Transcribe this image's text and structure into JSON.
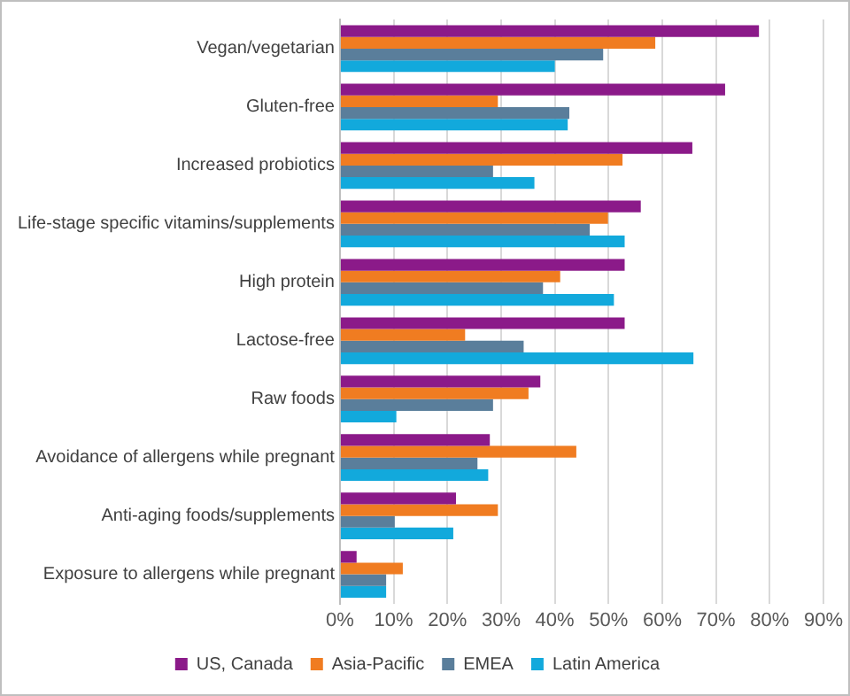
{
  "chart_data": {
    "type": "bar",
    "orientation": "horizontal",
    "categories": [
      "Vegan/vegetarian",
      "Gluten-free",
      "Increased probiotics",
      "Life-stage specific vitamins/supplements",
      "High protein",
      "Lactose-free",
      "Raw foods",
      "Avoidance of allergens while pregnant",
      "Anti-aging foods/supplements",
      "Exposure to allergens while pregnant"
    ],
    "series": [
      {
        "name": "US, Canada",
        "color": "#8b1a89",
        "values": [
          78,
          71.7,
          65.6,
          56,
          53,
          53,
          37.3,
          27.9,
          21.6,
          3.1
        ]
      },
      {
        "name": "Asia-Pacific",
        "color": "#f07c21",
        "values": [
          58.7,
          29.4,
          52.6,
          49.9,
          41,
          23.3,
          35.1,
          44,
          29.4,
          11.7
        ]
      },
      {
        "name": "EMEA",
        "color": "#5a7e9b",
        "values": [
          49,
          42.7,
          28.5,
          46.5,
          37.8,
          34.2,
          28.5,
          25.6,
          10.2,
          8.6
        ]
      },
      {
        "name": "Latin America",
        "color": "#12a9dc",
        "values": [
          40,
          42.4,
          36.2,
          53,
          51,
          65.8,
          10.5,
          27.6,
          21.1,
          8.6
        ]
      }
    ],
    "xlim": [
      0,
      90
    ],
    "xticks": [
      {
        "value": 0,
        "label": "0%"
      },
      {
        "value": 10,
        "label": "10%"
      },
      {
        "value": 20,
        "label": "20%"
      },
      {
        "value": 30,
        "label": "30%"
      },
      {
        "value": 40,
        "label": "40%"
      },
      {
        "value": 50,
        "label": "50%"
      },
      {
        "value": 60,
        "label": "60%"
      },
      {
        "value": 70,
        "label": "70%"
      },
      {
        "value": 80,
        "label": "80%"
      },
      {
        "value": 90,
        "label": "90%"
      }
    ],
    "grid": "x",
    "legend": "bottom"
  }
}
